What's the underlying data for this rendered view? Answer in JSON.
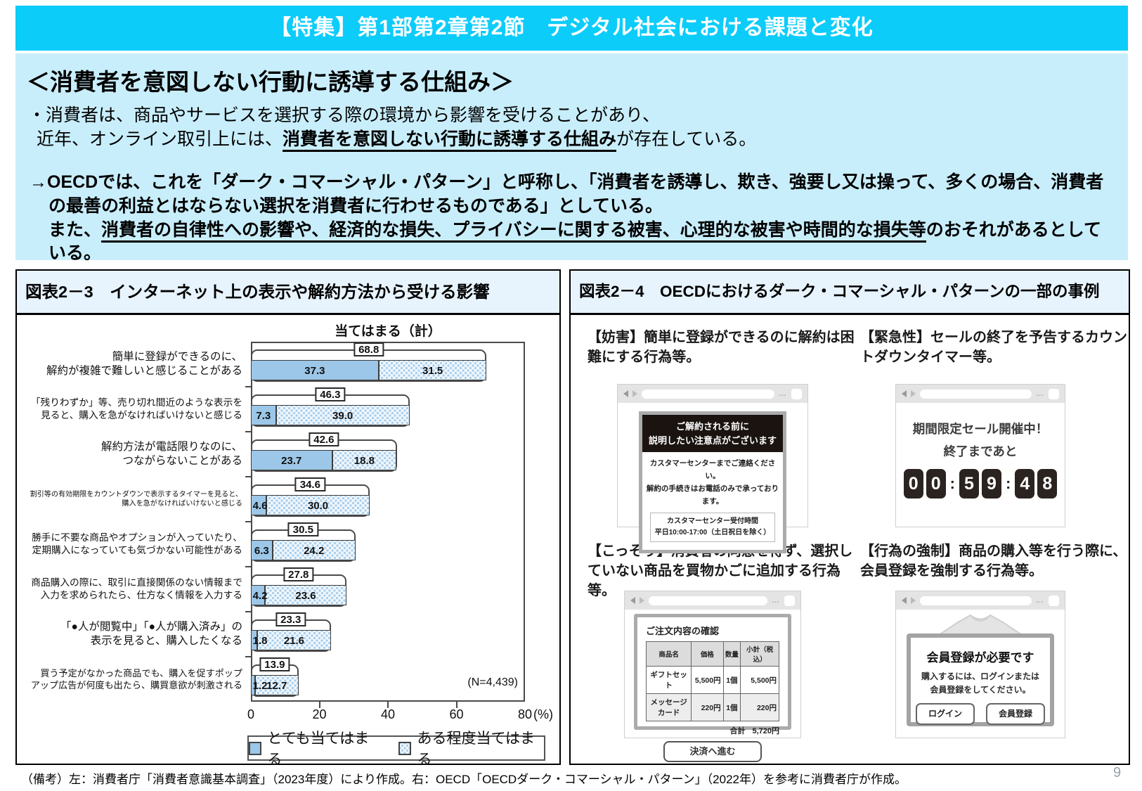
{
  "banner": {
    "title": "【特集】第1部第2章第2節　デジタル社会における課題と変化"
  },
  "intro": {
    "heading": "＜消費者を意図しない行動に誘導する仕組み＞",
    "point1_line1": "・消費者は、商品やサービスを選択する際の環境から影響を受けることがあり、",
    "point1_line2_pre": "近年、オンライン取引上には、",
    "point1_line2_emphasis": "消費者を意図しない行動に誘導する仕組み",
    "point1_line2_post": "が存在している。",
    "point2": "→OECDでは、これを「ダーク・コマーシャル・パターン」と呼称し、「消費者を誘導し、欺き、強要し又は操って、多くの場合、消費者の最善の利益とはならない選択を消費者に行わせるものである」としている。",
    "point3_pre": "また、",
    "point3_emphasis": "消費者の自律性への影響や、経済的な損失、プライバシーに関する被害、心理的な被害や時間的な損失等",
    "point3_post": "のおそれがあるとしている。"
  },
  "figure3": {
    "title": "図表2－3　インターネット上の表示や解約方法から受ける影響"
  },
  "chart_data": {
    "type": "bar",
    "orientation": "horizontal",
    "stacked": true,
    "title": "当てはまる（計）",
    "xlim": [
      0,
      80
    ],
    "x_ticks": [
      0,
      20,
      40,
      60,
      80
    ],
    "x_unit": "(%)",
    "n_label": "(N=4,439)",
    "categories": [
      [
        "簡単に登録ができるのに、",
        "解約が複雑で難しいと感じることがある"
      ],
      [
        "「残りわずか」等、売り切れ間近のような表示を",
        "見ると、購入を急がなければいけないと感じる"
      ],
      [
        "解約方法が電話限りなのに、",
        "つながらないことがある"
      ],
      [
        "割引等の有効期限をカウントダウンで表示するタイマーを見ると、",
        "購入を急がなければいけないと感じる"
      ],
      [
        "勝手に不要な商品やオプションが入っていたり、",
        "定期購入になっていても気づかない可能性がある"
      ],
      [
        "商品購入の際に、取引に直接関係のない情報まで",
        "入力を求められたら、仕方なく情報を入力する"
      ],
      [
        "「●人が閲覧中」「●人が購入済み」の",
        "表示を見ると、購入したくなる"
      ],
      [
        "買う予定がなかった商品でも、購入を促すポップ",
        "アップ広告が何度も出たら、購買意欲が刺激される"
      ]
    ],
    "series": [
      {
        "name": "とても当てはまる",
        "color": "#9cc7e8",
        "values": [
          37.3,
          7.3,
          23.7,
          4.6,
          6.3,
          4.2,
          1.8,
          1.2
        ]
      },
      {
        "name": "ある程度当てはまる",
        "color": "#a9cfed",
        "pattern": true,
        "values": [
          31.5,
          39.0,
          18.8,
          30.0,
          24.2,
          23.6,
          21.6,
          12.7
        ]
      }
    ],
    "totals": [
      68.8,
      46.3,
      42.6,
      34.6,
      30.5,
      27.8,
      23.3,
      13.9
    ]
  },
  "figure4": {
    "title": "図表2－4　OECDにおけるダーク・コマーシャル・パターンの一部の事例",
    "examples": {
      "obstruction": {
        "caption": "【妨害】簡単に登録ができるのに解約は困難にする行為等。",
        "dialog": {
          "header_line1": "ご解約される前に",
          "header_line2": "説明したい注意点がございます",
          "body_line1": "カスタマーセンターまでご連絡ください。",
          "body_line2": "解約の手続きはお電話のみで承っております。",
          "note_line1": "カスタマーセンター受付時間",
          "note_line2": "平日10:00-17:00（土日祝日を除く）"
        }
      },
      "urgency": {
        "caption": "【緊急性】セールの終了を予告するカウントダウンタイマー等。",
        "sale": {
          "line1": "期間限定セール開催中！",
          "line2": "終了まであと",
          "digits": [
            "0",
            "0",
            "5",
            "9",
            "4",
            "8"
          ]
        }
      },
      "sneaking": {
        "caption": "【こっそり】消費者の同意を得ず、選択していない商品を買物かごに追加する行為等。",
        "order": {
          "title": "ご注文内容の確認",
          "columns": [
            "商品名",
            "価格",
            "数量",
            "小計（税込）"
          ],
          "rows": [
            [
              "ギフトセット",
              "5,500円",
              "1個",
              "5,500円"
            ],
            [
              "メッセージカード",
              "220円",
              "1個",
              "220円"
            ]
          ],
          "total_label": "合計",
          "total_value": "5,720円",
          "button": "決済へ進む"
        }
      },
      "forced_action": {
        "caption": "【行為の強制】商品の購入等を行う際に、会員登録を強制する行為等。",
        "membership": {
          "title": "会員登録が必要です",
          "body_line1": "購入するには、ログインまたは",
          "body_line2": "会員登録をしてください。",
          "buttons": [
            "ログイン",
            "会員登録"
          ]
        }
      }
    }
  },
  "footnote": "（備考）左：消費者庁「消費者意識基本調査」（2023年度）により作成。右：OECD「OECDダーク・コマーシャル・パターン」（2022年）を参考に消費者庁が作成。",
  "page_number": "9",
  "colors": {
    "banner": "#0cccfa",
    "intro_bg": "#c9eefb",
    "figure_title_bg": "#e7f3fd",
    "bar_strong": "#9cc7e8",
    "bar_light_dot": "#a9cfed",
    "digit_tile": "#2a2320",
    "dialog_header": "#1a1310"
  }
}
